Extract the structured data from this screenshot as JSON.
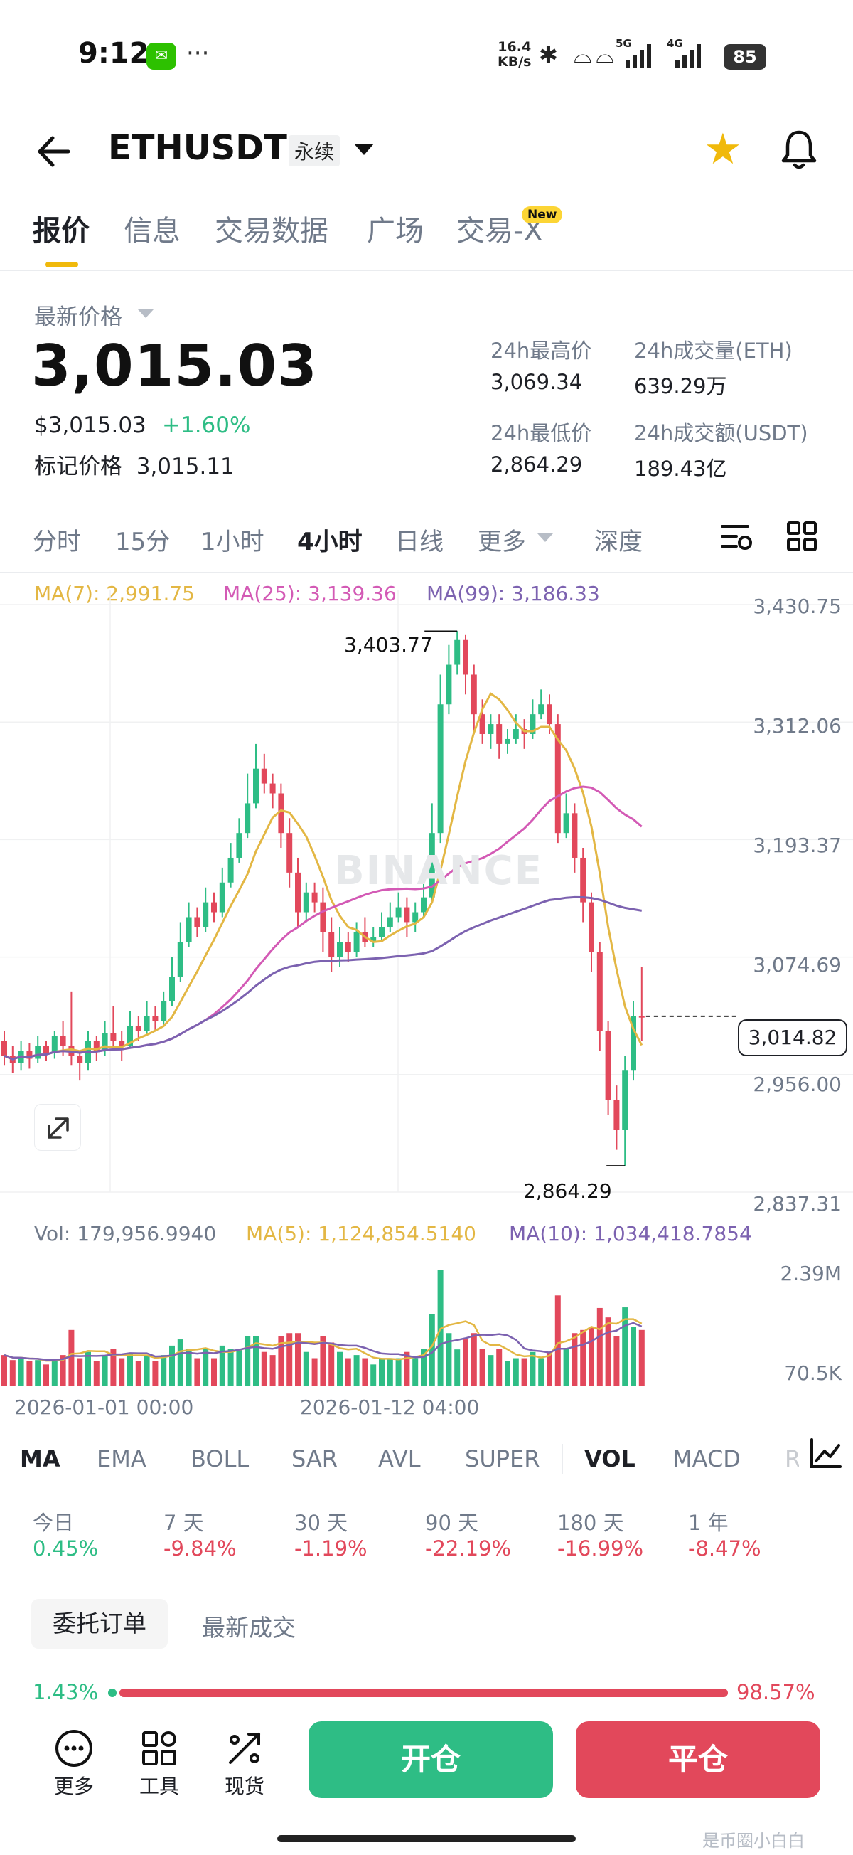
{
  "status_bar": {
    "time": "9:12",
    "net_speed_top": "16.4",
    "net_speed_bottom": "KB/s",
    "sig1": "5G",
    "sig2": "4G",
    "battery": "85",
    "more_dots": "···"
  },
  "header": {
    "symbol": "ETHUSDT",
    "contract_type": "永续",
    "icons": [
      "back-arrow-icon",
      "dropdown-caret-icon",
      "star-icon",
      "bell-icon"
    ],
    "star_color": "#f0b90b"
  },
  "tabs": [
    {
      "label": "报价",
      "active": true
    },
    {
      "label": "信息"
    },
    {
      "label": "交易数据"
    },
    {
      "label": "广场"
    },
    {
      "label": "交易-X",
      "badge": "New"
    }
  ],
  "price": {
    "latest_label": "最新价格",
    "last_price": "3,015.03",
    "usd_price": "$3,015.03",
    "change_pct": "+1.60%",
    "mark_label": "标记价格",
    "mark_price": "3,015.11"
  },
  "stats": {
    "high_label": "24h最高价",
    "high": "3,069.34",
    "low_label": "24h最低价",
    "low": "2,864.29",
    "vol_label": "24h成交量(ETH)",
    "vol": "639.29万",
    "turnover_label": "24h成交额(USDT)",
    "turnover": "189.43亿"
  },
  "intervals": [
    "分时",
    "15分",
    "1小时",
    "4小时",
    "日线",
    "更多",
    "深度"
  ],
  "active_interval": "4小时",
  "ma_legend": {
    "ma7": "MA(7): 2,991.75",
    "ma25": "MA(25): 3,139.36",
    "ma99": "MA(99): 3,186.33"
  },
  "colors": {
    "up": "#2ebd85",
    "down": "#e2485b",
    "ma7": "#e3b744",
    "ma25": "#d35ab5",
    "ma99": "#7c62b0",
    "accent": "#f0b90b"
  },
  "chart_data": {
    "type": "candlestick",
    "y_ticks": [
      "3,430.75",
      "3,312.06",
      "3,193.37",
      "3,074.69",
      "2,956.00",
      "2,837.31"
    ],
    "ylim": [
      2837.31,
      3430.75
    ],
    "current_price_label": "3,014.82",
    "high_annotation": "3,403.77",
    "low_annotation": "2,864.29",
    "x_labels": [
      "2026-01-01 00:00",
      "2026-01-12 04:00"
    ],
    "volume": {
      "legend_vol": "Vol: 179,956.9940",
      "legend_ma5": "MA(5): 1,124,854.5140",
      "legend_ma10": "MA(10): 1,034,418.7854",
      "y_ticks": [
        "2.39M",
        "70.5K"
      ]
    },
    "candles": [
      [
        2990,
        2975,
        3000,
        2965
      ],
      [
        2975,
        2968,
        2985,
        2958
      ],
      [
        2968,
        2980,
        2990,
        2960
      ],
      [
        2980,
        2972,
        2988,
        2962
      ],
      [
        2972,
        2985,
        2995,
        2968
      ],
      [
        2985,
        2978,
        2990,
        2970
      ],
      [
        2978,
        2995,
        3000,
        2972
      ],
      [
        2995,
        2985,
        3010,
        2975
      ],
      [
        2985,
        2975,
        3040,
        2965
      ],
      [
        2975,
        2968,
        2980,
        2950
      ],
      [
        2968,
        2990,
        3000,
        2960
      ],
      [
        2990,
        2980,
        2995,
        2970
      ],
      [
        2980,
        2998,
        3010,
        2975
      ],
      [
        2998,
        2990,
        3025,
        2980
      ],
      [
        2990,
        2985,
        3000,
        2970
      ],
      [
        2985,
        3005,
        3020,
        2982
      ],
      [
        3005,
        3000,
        3015,
        2990
      ],
      [
        3000,
        3015,
        3030,
        2995
      ],
      [
        3015,
        3010,
        3025,
        3000
      ],
      [
        3010,
        3030,
        3040,
        3005
      ],
      [
        3030,
        3055,
        3075,
        3025
      ],
      [
        3055,
        3090,
        3110,
        3050
      ],
      [
        3090,
        3115,
        3130,
        3085
      ],
      [
        3115,
        3105,
        3125,
        3095
      ],
      [
        3105,
        3130,
        3145,
        3100
      ],
      [
        3130,
        3120,
        3140,
        3110
      ],
      [
        3120,
        3150,
        3165,
        3115
      ],
      [
        3150,
        3175,
        3190,
        3145
      ],
      [
        3175,
        3200,
        3215,
        3170
      ],
      [
        3200,
        3230,
        3260,
        3195
      ],
      [
        3230,
        3265,
        3290,
        3225
      ],
      [
        3265,
        3250,
        3280,
        3240
      ],
      [
        3250,
        3240,
        3260,
        3225
      ],
      [
        3240,
        3200,
        3250,
        3185
      ],
      [
        3200,
        3160,
        3215,
        3145
      ],
      [
        3160,
        3120,
        3175,
        3105
      ],
      [
        3120,
        3140,
        3150,
        3110
      ],
      [
        3140,
        3130,
        3150,
        3120
      ],
      [
        3130,
        3100,
        3145,
        3080
      ],
      [
        3100,
        3075,
        3115,
        3060
      ],
      [
        3075,
        3090,
        3105,
        3065
      ],
      [
        3090,
        3080,
        3100,
        3070
      ],
      [
        3080,
        3100,
        3110,
        3075
      ],
      [
        3100,
        3090,
        3115,
        3085
      ],
      [
        3090,
        3095,
        3105,
        3085
      ],
      [
        3095,
        3105,
        3120,
        3090
      ],
      [
        3105,
        3115,
        3130,
        3100
      ],
      [
        3115,
        3125,
        3140,
        3110
      ],
      [
        3125,
        3110,
        3135,
        3095
      ],
      [
        3110,
        3120,
        3130,
        3100
      ],
      [
        3120,
        3135,
        3160,
        3115
      ],
      [
        3135,
        3200,
        3230,
        3130
      ],
      [
        3200,
        3330,
        3360,
        3190
      ],
      [
        3330,
        3370,
        3390,
        3320
      ],
      [
        3370,
        3395,
        3404,
        3360
      ],
      [
        3395,
        3360,
        3400,
        3340
      ],
      [
        3360,
        3320,
        3370,
        3300
      ],
      [
        3320,
        3300,
        3335,
        3290
      ],
      [
        3300,
        3310,
        3320,
        3285
      ],
      [
        3310,
        3290,
        3320,
        3275
      ],
      [
        3290,
        3295,
        3305,
        3280
      ],
      [
        3295,
        3305,
        3320,
        3290
      ],
      [
        3305,
        3300,
        3315,
        3285
      ],
      [
        3300,
        3320,
        3335,
        3295
      ],
      [
        3320,
        3330,
        3345,
        3315
      ],
      [
        3330,
        3310,
        3340,
        3300
      ],
      [
        3310,
        3200,
        3320,
        3190
      ],
      [
        3200,
        3220,
        3240,
        3195
      ],
      [
        3220,
        3175,
        3230,
        3160
      ],
      [
        3175,
        3130,
        3185,
        3110
      ],
      [
        3130,
        3080,
        3140,
        3060
      ],
      [
        3080,
        3000,
        3090,
        2980
      ],
      [
        3000,
        2930,
        3010,
        2915
      ],
      [
        2930,
        2900,
        2945,
        2880
      ],
      [
        2900,
        2960,
        2975,
        2864
      ],
      [
        2960,
        3015,
        3030,
        2950
      ],
      [
        3015,
        3014.82,
        3065,
        2990
      ]
    ]
  },
  "indicators": [
    "MA",
    "EMA",
    "BOLL",
    "SAR",
    "AVL",
    "SUPER",
    "VOL",
    "MACD",
    "R"
  ],
  "active_indicators": [
    "MA",
    "VOL"
  ],
  "performance": [
    {
      "label": "今日",
      "value": "0.45%",
      "dir": "up"
    },
    {
      "label": "7 天",
      "value": "-9.84%",
      "dir": "down"
    },
    {
      "label": "30 天",
      "value": "-1.19%",
      "dir": "down"
    },
    {
      "label": "90 天",
      "value": "-22.19%",
      "dir": "down"
    },
    {
      "label": "180 天",
      "value": "-16.99%",
      "dir": "down"
    },
    {
      "label": "1 年",
      "value": "-8.47%",
      "dir": "down"
    }
  ],
  "orders": {
    "tab_orders": "委托订单",
    "tab_trades": "最新成交",
    "buy_ratio": "1.43%",
    "sell_ratio": "98.57%",
    "buy_fraction": 0.0143
  },
  "bottom_bar": {
    "more": "更多",
    "tools": "工具",
    "spot": "现货",
    "open": "开仓",
    "close": "平仓"
  },
  "watermark": "是币圈小白白",
  "chart_watermark": "BINANCE"
}
